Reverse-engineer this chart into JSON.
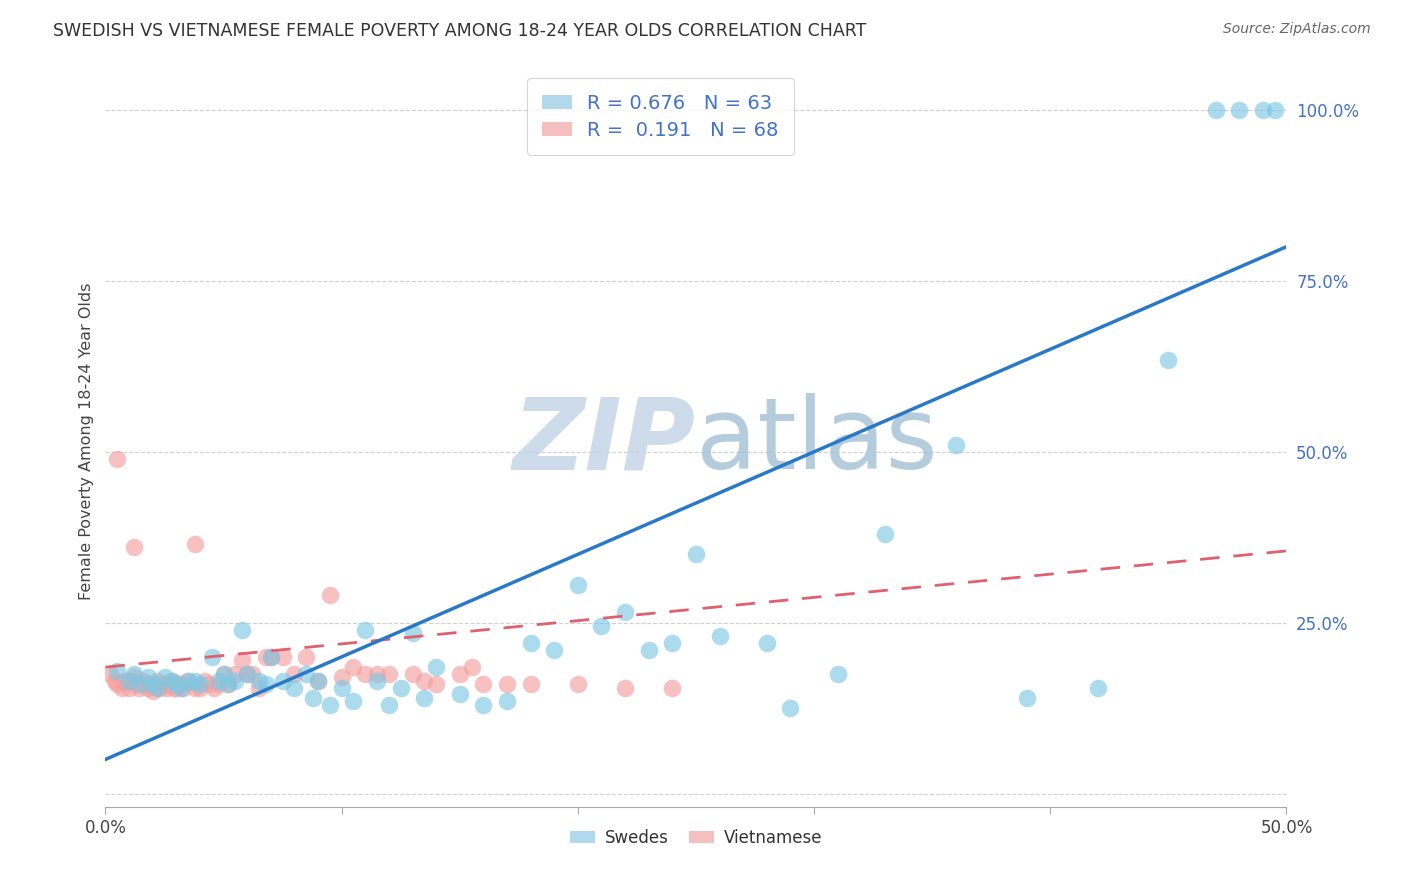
{
  "title": "SWEDISH VS VIETNAMESE FEMALE POVERTY AMONG 18-24 YEAR OLDS CORRELATION CHART",
  "source": "Source: ZipAtlas.com",
  "ylabel": "Female Poverty Among 18-24 Year Olds",
  "xlim": [
    0.0,
    0.5
  ],
  "ylim": [
    -0.02,
    1.05
  ],
  "xtick_positions": [
    0.0,
    0.5
  ],
  "xticklabels": [
    "0.0%",
    "50.0%"
  ],
  "ytick_positions": [
    0.25,
    0.5,
    0.75,
    1.0
  ],
  "yticklabels": [
    "25.0%",
    "50.0%",
    "75.0%",
    "100.0%"
  ],
  "grid_color": "#d0d0d0",
  "background_color": "#ffffff",
  "watermark_zip": "ZIP",
  "watermark_atlas": "atlas",
  "watermark_color_zip": "#c5d5e8",
  "watermark_color_atlas": "#a8c4d8",
  "swedish_R": 0.676,
  "swedish_N": 63,
  "vietnamese_R": 0.191,
  "vietnamese_N": 68,
  "swedish_color": "#7ec8e3",
  "swedish_color_fill": "#aad4ed",
  "vietnamese_color": "#f5a0a0",
  "vietnamese_color_fill": "#f5b8b8",
  "trend_blue": "#2979c8",
  "trend_pink": "#e06070",
  "legend_label_swedish": "Swedes",
  "legend_label_vietnamese": "Vietnamese",
  "swedish_x": [
    0.005,
    0.01,
    0.012,
    0.015,
    0.018,
    0.02,
    0.022,
    0.025,
    0.028,
    0.03,
    0.032,
    0.035,
    0.038,
    0.04,
    0.045,
    0.048,
    0.05,
    0.052,
    0.055,
    0.058,
    0.06,
    0.065,
    0.068,
    0.07,
    0.075,
    0.08,
    0.085,
    0.088,
    0.09,
    0.095,
    0.1,
    0.105,
    0.11,
    0.115,
    0.12,
    0.125,
    0.13,
    0.135,
    0.14,
    0.15,
    0.16,
    0.17,
    0.18,
    0.19,
    0.2,
    0.21,
    0.22,
    0.23,
    0.24,
    0.25,
    0.26,
    0.28,
    0.29,
    0.31,
    0.33,
    0.36,
    0.39,
    0.42,
    0.45,
    0.47,
    0.48,
    0.49,
    0.495
  ],
  "swedish_y": [
    0.18,
    0.165,
    0.175,
    0.16,
    0.17,
    0.16,
    0.155,
    0.17,
    0.165,
    0.16,
    0.155,
    0.165,
    0.165,
    0.16,
    0.2,
    0.165,
    0.175,
    0.16,
    0.165,
    0.24,
    0.175,
    0.165,
    0.16,
    0.2,
    0.165,
    0.155,
    0.175,
    0.14,
    0.165,
    0.13,
    0.155,
    0.135,
    0.24,
    0.165,
    0.13,
    0.155,
    0.235,
    0.14,
    0.185,
    0.145,
    0.13,
    0.135,
    0.22,
    0.21,
    0.305,
    0.245,
    0.265,
    0.21,
    0.22,
    0.35,
    0.23,
    0.22,
    0.125,
    0.175,
    0.38,
    0.51,
    0.14,
    0.155,
    0.635,
    1.0,
    1.0,
    1.0,
    1.0
  ],
  "vietnamese_x": [
    0.002,
    0.004,
    0.005,
    0.007,
    0.008,
    0.01,
    0.011,
    0.012,
    0.013,
    0.014,
    0.015,
    0.016,
    0.017,
    0.018,
    0.019,
    0.02,
    0.021,
    0.022,
    0.023,
    0.025,
    0.026,
    0.027,
    0.028,
    0.029,
    0.03,
    0.031,
    0.032,
    0.033,
    0.035,
    0.038,
    0.04,
    0.042,
    0.044,
    0.046,
    0.048,
    0.05,
    0.052,
    0.055,
    0.058,
    0.06,
    0.062,
    0.065,
    0.068,
    0.07,
    0.075,
    0.08,
    0.085,
    0.09,
    0.095,
    0.1,
    0.105,
    0.11,
    0.115,
    0.12,
    0.13,
    0.135,
    0.14,
    0.15,
    0.155,
    0.16,
    0.17,
    0.18,
    0.2,
    0.22,
    0.24,
    0.005,
    0.012,
    0.038
  ],
  "vietnamese_y": [
    0.175,
    0.165,
    0.16,
    0.155,
    0.165,
    0.155,
    0.165,
    0.17,
    0.16,
    0.155,
    0.16,
    0.165,
    0.16,
    0.155,
    0.16,
    0.15,
    0.16,
    0.165,
    0.155,
    0.16,
    0.155,
    0.16,
    0.165,
    0.155,
    0.155,
    0.16,
    0.16,
    0.155,
    0.165,
    0.155,
    0.155,
    0.165,
    0.16,
    0.155,
    0.16,
    0.175,
    0.16,
    0.175,
    0.195,
    0.175,
    0.175,
    0.155,
    0.2,
    0.2,
    0.2,
    0.175,
    0.2,
    0.165,
    0.29,
    0.17,
    0.185,
    0.175,
    0.175,
    0.175,
    0.175,
    0.165,
    0.16,
    0.175,
    0.185,
    0.16,
    0.16,
    0.16,
    0.16,
    0.155,
    0.155,
    0.49,
    0.36,
    0.365
  ]
}
